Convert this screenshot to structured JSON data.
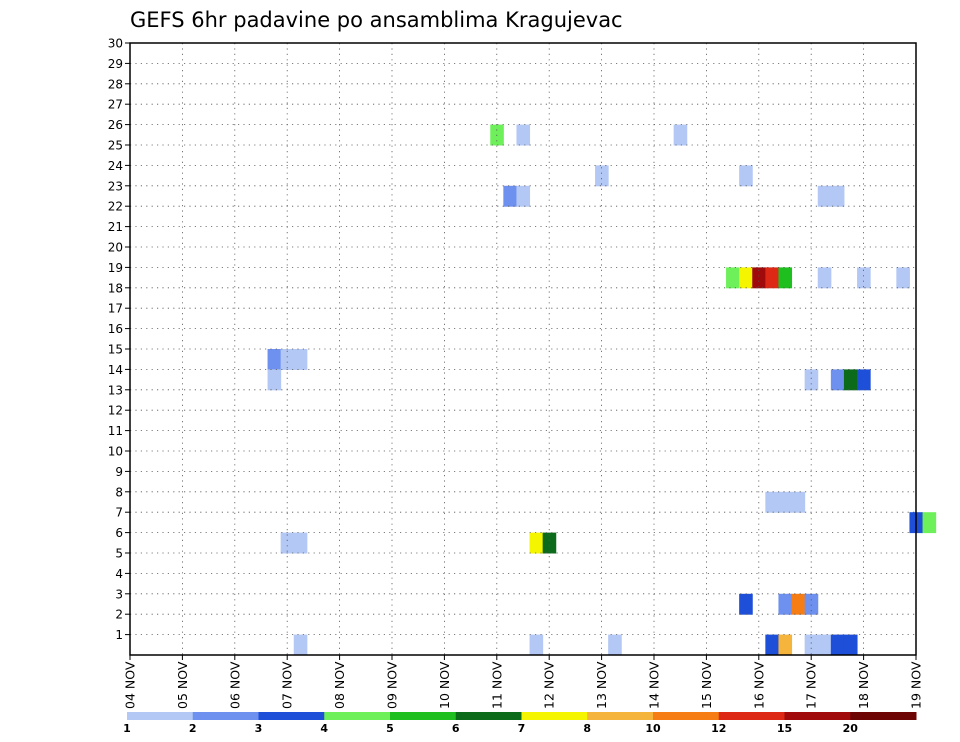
{
  "chart_data": {
    "type": "heatmap",
    "title": "GEFS 6hr padavine po ansamblima Kragujevac",
    "y_ticks": [
      "1",
      "2",
      "3",
      "4",
      "5",
      "6",
      "7",
      "8",
      "9",
      "10",
      "11",
      "12",
      "13",
      "14",
      "15",
      "16",
      "17",
      "18",
      "19",
      "20",
      "21",
      "22",
      "23",
      "24",
      "25",
      "26",
      "27",
      "28",
      "29",
      "30"
    ],
    "x_ticks": [
      "04 NOV",
      "05 NOV",
      "06 NOV",
      "07 NOV",
      "08 NOV",
      "09 NOV",
      "10 NOV",
      "11 NOV",
      "12 NOV",
      "13 NOV",
      "14 NOV",
      "15 NOV",
      "16 NOV",
      "17 NOV",
      "18 NOV",
      "19 NOV"
    ],
    "colorbar": {
      "colors": [
        "#b4c8f5",
        "#6e90ef",
        "#1e4fd8",
        "#6ef05a",
        "#1fbf1f",
        "#0b6b1a",
        "#f5f500",
        "#f5b43c",
        "#f57d14",
        "#dc2814",
        "#a00a0a",
        "#6e0505"
      ],
      "labels": [
        "1",
        "2",
        "3",
        "4",
        "5",
        "6",
        "7",
        "8",
        "10",
        "12",
        "15",
        "20"
      ]
    },
    "cells": [
      {
        "d": 11.0,
        "m": 25.5,
        "c": "#6ef05a"
      },
      {
        "d": 11.5,
        "m": 25.5,
        "c": "#b4c8f5"
      },
      {
        "d": 14.5,
        "m": 25.5,
        "c": "#b4c8f5"
      },
      {
        "d": 13.0,
        "m": 23.5,
        "c": "#b4c8f5"
      },
      {
        "d": 15.75,
        "m": 23.5,
        "c": "#b4c8f5"
      },
      {
        "d": 11.25,
        "m": 22.5,
        "c": "#6e90ef"
      },
      {
        "d": 11.5,
        "m": 22.5,
        "c": "#b4c8f5"
      },
      {
        "d": 17.25,
        "m": 22.5,
        "c": "#b4c8f5"
      },
      {
        "d": 17.5,
        "m": 22.5,
        "c": "#b4c8f5"
      },
      {
        "d": 15.5,
        "m": 18.5,
        "c": "#6ef05a"
      },
      {
        "d": 15.75,
        "m": 18.5,
        "c": "#f5f500"
      },
      {
        "d": 16.0,
        "m": 18.5,
        "c": "#a00a0a"
      },
      {
        "d": 16.25,
        "m": 18.5,
        "c": "#dc2814"
      },
      {
        "d": 16.5,
        "m": 18.5,
        "c": "#1fbf1f"
      },
      {
        "d": 17.25,
        "m": 18.5,
        "c": "#b4c8f5"
      },
      {
        "d": 18.0,
        "m": 18.5,
        "c": "#b4c8f5"
      },
      {
        "d": 18.75,
        "m": 18.5,
        "c": "#b4c8f5"
      },
      {
        "d": 6.75,
        "m": 14.5,
        "c": "#6e90ef"
      },
      {
        "d": 7.0,
        "m": 14.5,
        "c": "#b4c8f5"
      },
      {
        "d": 7.25,
        "m": 14.5,
        "c": "#b4c8f5"
      },
      {
        "d": 6.75,
        "m": 13.5,
        "c": "#b4c8f5"
      },
      {
        "d": 17.0,
        "m": 13.5,
        "c": "#b4c8f5"
      },
      {
        "d": 17.5,
        "m": 13.5,
        "c": "#6e90ef"
      },
      {
        "d": 17.75,
        "m": 13.5,
        "c": "#0b6b1a"
      },
      {
        "d": 18.0,
        "m": 13.5,
        "c": "#1e4fd8"
      },
      {
        "d": 16.25,
        "m": 7.5,
        "c": "#b4c8f5"
      },
      {
        "d": 16.5,
        "m": 7.5,
        "c": "#b4c8f5"
      },
      {
        "d": 16.75,
        "m": 7.5,
        "c": "#b4c8f5"
      },
      {
        "d": 19.0,
        "m": 6.5,
        "c": "#1e4fd8"
      },
      {
        "d": 19.25,
        "m": 6.5,
        "c": "#6ef05a"
      },
      {
        "d": 7.0,
        "m": 5.5,
        "c": "#b4c8f5"
      },
      {
        "d": 7.25,
        "m": 5.5,
        "c": "#b4c8f5"
      },
      {
        "d": 11.75,
        "m": 5.5,
        "c": "#f5f500"
      },
      {
        "d": 12.0,
        "m": 5.5,
        "c": "#0b6b1a"
      },
      {
        "d": 15.75,
        "m": 2.5,
        "c": "#1e4fd8"
      },
      {
        "d": 16.5,
        "m": 2.5,
        "c": "#6e90ef"
      },
      {
        "d": 16.75,
        "m": 2.5,
        "c": "#f57d14"
      },
      {
        "d": 17.0,
        "m": 2.5,
        "c": "#6e90ef"
      },
      {
        "d": 7.25,
        "m": 0.5,
        "c": "#b4c8f5"
      },
      {
        "d": 11.75,
        "m": 0.5,
        "c": "#b4c8f5"
      },
      {
        "d": 13.25,
        "m": 0.5,
        "c": "#b4c8f5"
      },
      {
        "d": 16.25,
        "m": 0.5,
        "c": "#1e4fd8"
      },
      {
        "d": 16.5,
        "m": 0.5,
        "c": "#f5b43c"
      },
      {
        "d": 17.0,
        "m": 0.5,
        "c": "#b4c8f5"
      },
      {
        "d": 17.25,
        "m": 0.5,
        "c": "#b4c8f5"
      },
      {
        "d": 17.5,
        "m": 0.5,
        "c": "#1e4fd8"
      },
      {
        "d": 17.75,
        "m": 0.5,
        "c": "#1e4fd8"
      }
    ]
  }
}
